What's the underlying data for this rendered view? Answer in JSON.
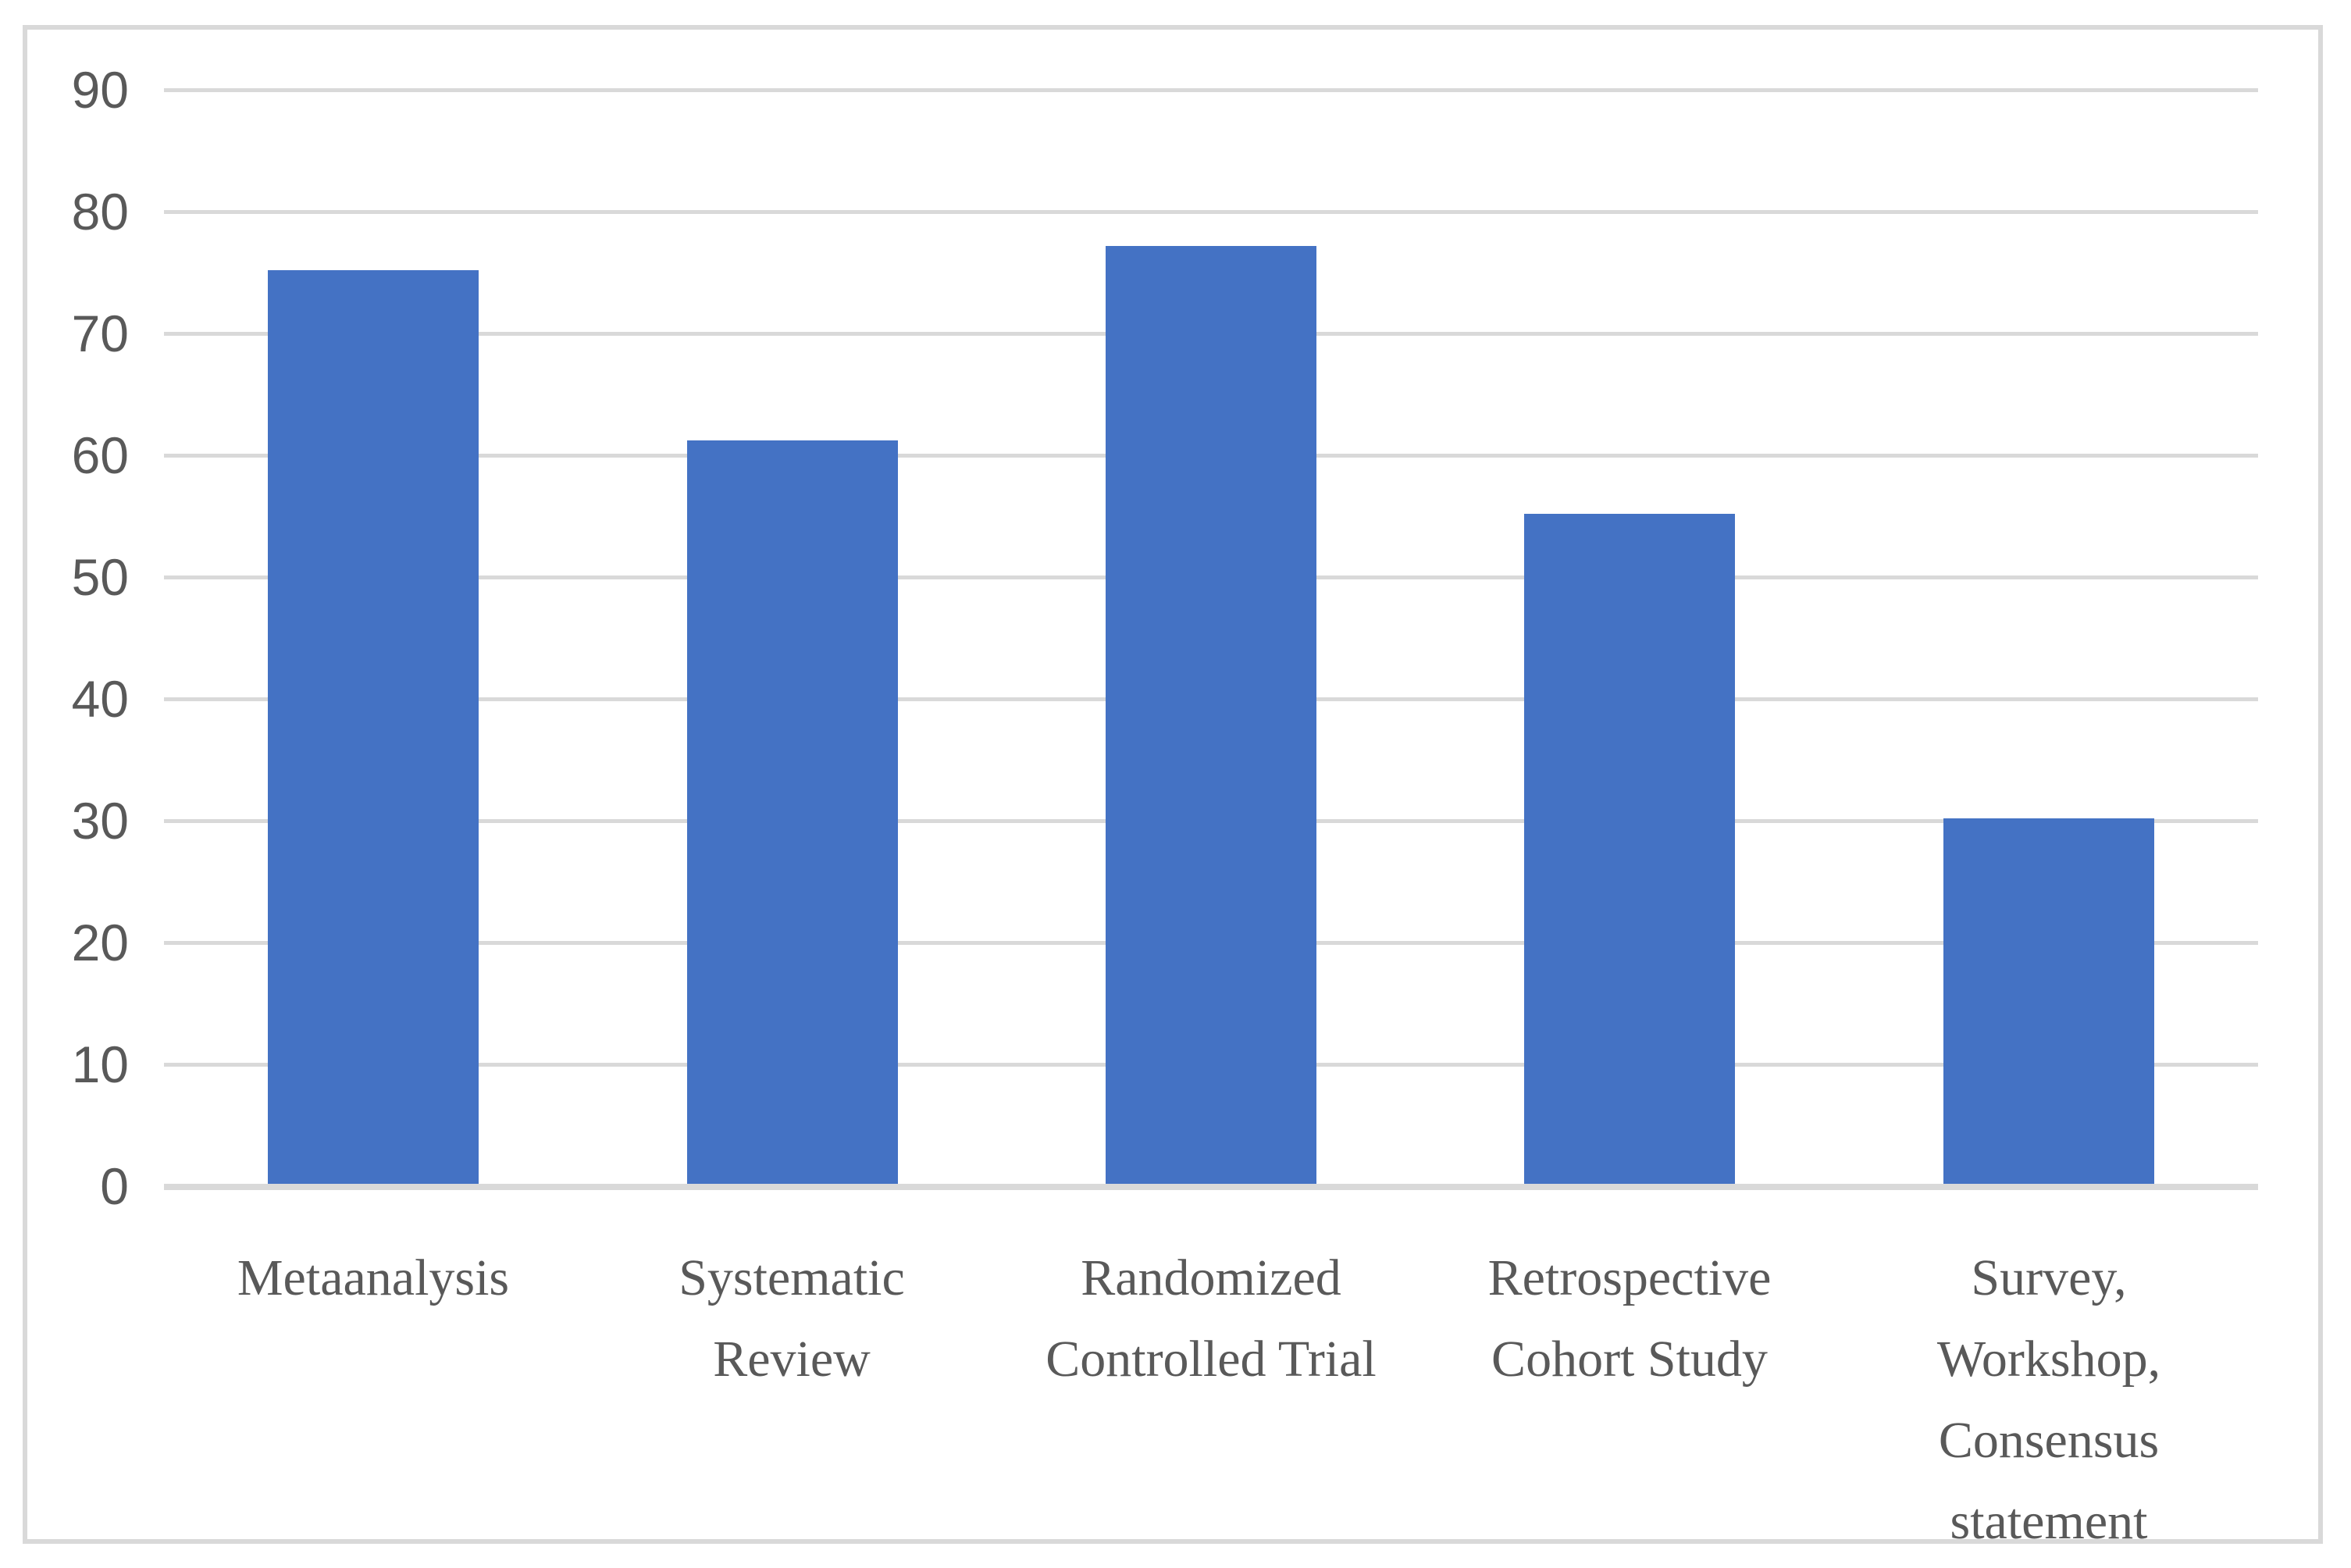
{
  "chart_data": {
    "type": "bar",
    "title": "",
    "xlabel": "",
    "ylabel": "",
    "categories": [
      "Metaanalysis",
      "Systematic Review",
      "Randomized Controlled Trial",
      "Retrospective Cohort Study",
      "Survey, Workshop, Consensus statement"
    ],
    "tick_label_lines": [
      "Metaanalysis",
      "Systematic\nReview",
      "Randomized\nControlled Trial",
      "Retrospective\nCohort Study",
      "Survey,\nWorkshop,\nConsensus\nstatement"
    ],
    "values": [
      75,
      61,
      77,
      55,
      30
    ],
    "ylim": [
      0,
      90
    ],
    "yticks": [
      0,
      10,
      20,
      30,
      40,
      50,
      60,
      70,
      80,
      90
    ],
    "grid": true,
    "legend": false,
    "colors": {
      "bar": "#4472C4",
      "gridline": "#D9D9D9",
      "axis_line": "#D9D9D9",
      "frame_border": "#D9D9D9",
      "tick_text": "#595959",
      "background": "#FFFFFF"
    }
  }
}
